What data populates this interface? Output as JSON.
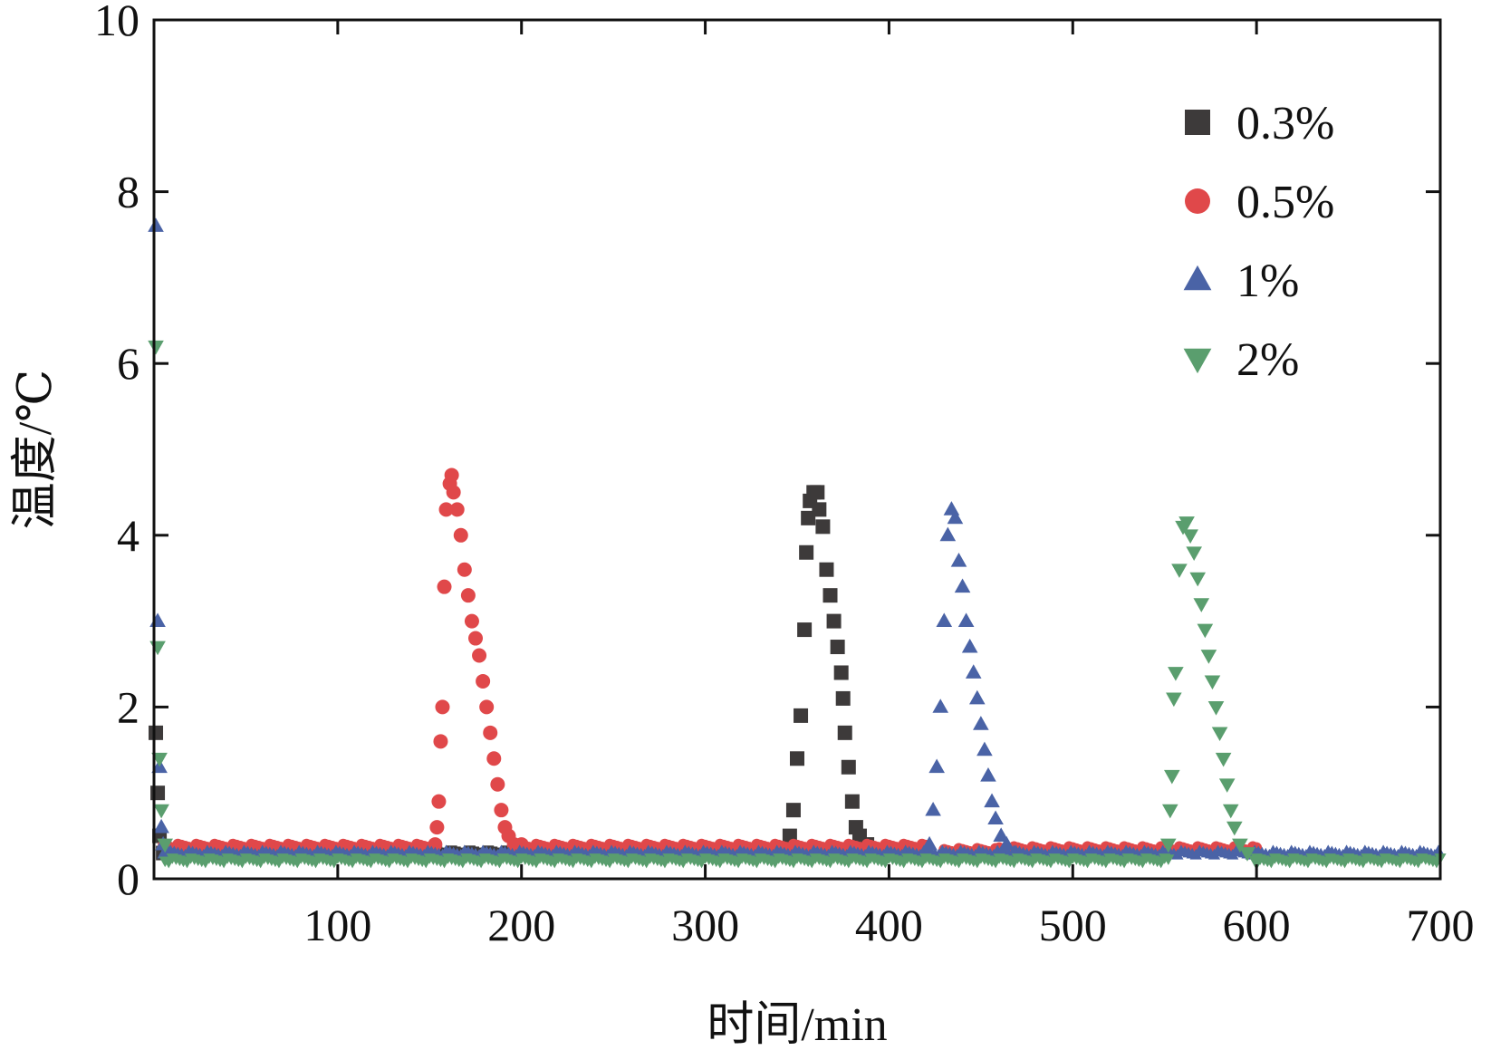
{
  "chart_data": {
    "type": "scatter",
    "title": "",
    "xlabel": "时间/min",
    "ylabel": "温度/℃",
    "xlim": [
      0,
      700
    ],
    "ylim": [
      0,
      10
    ],
    "xticks": [
      100,
      200,
      300,
      400,
      500,
      600,
      700
    ],
    "yticks": [
      0,
      2,
      4,
      6,
      8,
      10
    ],
    "grid": false,
    "legend_position": "top-right",
    "series": [
      {
        "name": "0.3%",
        "marker": "square",
        "color": "#3d3a3a",
        "points": [
          [
            1,
            1.7
          ],
          [
            2,
            1.0
          ],
          [
            3,
            0.5
          ],
          [
            5,
            0.3
          ],
          [
            8,
            0.3
          ],
          [
            346,
            0.5
          ],
          [
            348,
            0.8
          ],
          [
            350,
            1.4
          ],
          [
            352,
            1.9
          ],
          [
            354,
            2.9
          ],
          [
            355,
            3.8
          ],
          [
            356,
            4.2
          ],
          [
            357,
            4.4
          ],
          [
            359,
            4.5
          ],
          [
            361,
            4.5
          ],
          [
            362,
            4.3
          ],
          [
            364,
            4.1
          ],
          [
            366,
            3.6
          ],
          [
            368,
            3.3
          ],
          [
            370,
            3.0
          ],
          [
            372,
            2.7
          ],
          [
            374,
            2.4
          ],
          [
            375,
            2.1
          ],
          [
            376,
            1.7
          ],
          [
            378,
            1.3
          ],
          [
            380,
            0.9
          ],
          [
            382,
            0.6
          ],
          [
            384,
            0.5
          ],
          [
            388,
            0.4
          ]
        ],
        "baseline": [
          [
            8,
            380,
            0.3
          ]
        ]
      },
      {
        "name": "0.5%",
        "marker": "circle",
        "color": "#e0484a",
        "points": [
          [
            153,
            0.4
          ],
          [
            154,
            0.6
          ],
          [
            155,
            0.9
          ],
          [
            156,
            1.6
          ],
          [
            157,
            2.0
          ],
          [
            158,
            3.4
          ],
          [
            159,
            4.3
          ],
          [
            161,
            4.6
          ],
          [
            162,
            4.7
          ],
          [
            163,
            4.5
          ],
          [
            165,
            4.3
          ],
          [
            167,
            4.0
          ],
          [
            169,
            3.6
          ],
          [
            171,
            3.3
          ],
          [
            173,
            3.0
          ],
          [
            175,
            2.8
          ],
          [
            177,
            2.6
          ],
          [
            179,
            2.3
          ],
          [
            181,
            2.0
          ],
          [
            183,
            1.7
          ],
          [
            185,
            1.4
          ],
          [
            187,
            1.1
          ],
          [
            189,
            0.8
          ],
          [
            191,
            0.6
          ],
          [
            193,
            0.5
          ],
          [
            196,
            0.4
          ],
          [
            200,
            0.4
          ]
        ],
        "baseline": [
          [
            5,
            153,
            0.38
          ],
          [
            200,
            420,
            0.38
          ],
          [
            430,
            460,
            0.33
          ],
          [
            460,
            600,
            0.35
          ]
        ]
      },
      {
        "name": "1%",
        "marker": "triangle-up",
        "color": "#4a63a6",
        "points": [
          [
            1,
            7.6
          ],
          [
            2,
            3.0
          ],
          [
            3,
            1.3
          ],
          [
            4,
            0.6
          ],
          [
            5,
            0.4
          ],
          [
            422,
            0.4
          ],
          [
            424,
            0.8
          ],
          [
            426,
            1.3
          ],
          [
            428,
            2.0
          ],
          [
            430,
            3.0
          ],
          [
            432,
            4.0
          ],
          [
            434,
            4.3
          ],
          [
            436,
            4.2
          ],
          [
            438,
            3.7
          ],
          [
            440,
            3.4
          ],
          [
            442,
            3.0
          ],
          [
            444,
            2.7
          ],
          [
            446,
            2.4
          ],
          [
            448,
            2.1
          ],
          [
            450,
            1.8
          ],
          [
            452,
            1.5
          ],
          [
            454,
            1.2
          ],
          [
            456,
            0.9
          ],
          [
            458,
            0.7
          ],
          [
            461,
            0.5
          ],
          [
            464,
            0.4
          ],
          [
            468,
            0.3
          ]
        ],
        "baseline": [
          [
            5,
            700,
            0.3
          ]
        ]
      },
      {
        "name": "2%",
        "marker": "triangle-down",
        "color": "#5a9e6e",
        "points": [
          [
            1,
            6.2
          ],
          [
            2,
            2.7
          ],
          [
            3,
            1.4
          ],
          [
            4,
            0.8
          ],
          [
            6,
            0.4
          ],
          [
            552,
            0.4
          ],
          [
            553,
            0.8
          ],
          [
            554,
            1.2
          ],
          [
            555,
            2.1
          ],
          [
            556,
            2.4
          ],
          [
            558,
            3.6
          ],
          [
            560,
            4.1
          ],
          [
            562,
            4.15
          ],
          [
            564,
            4.0
          ],
          [
            566,
            3.8
          ],
          [
            568,
            3.5
          ],
          [
            570,
            3.2
          ],
          [
            572,
            2.9
          ],
          [
            574,
            2.6
          ],
          [
            576,
            2.3
          ],
          [
            578,
            2.0
          ],
          [
            580,
            1.7
          ],
          [
            582,
            1.4
          ],
          [
            584,
            1.1
          ],
          [
            586,
            0.8
          ],
          [
            588,
            0.6
          ],
          [
            591,
            0.4
          ],
          [
            595,
            0.3
          ],
          [
            600,
            0.2
          ]
        ],
        "baseline": [
          [
            6,
            552,
            0.22
          ],
          [
            600,
            700,
            0.22
          ]
        ]
      }
    ]
  }
}
